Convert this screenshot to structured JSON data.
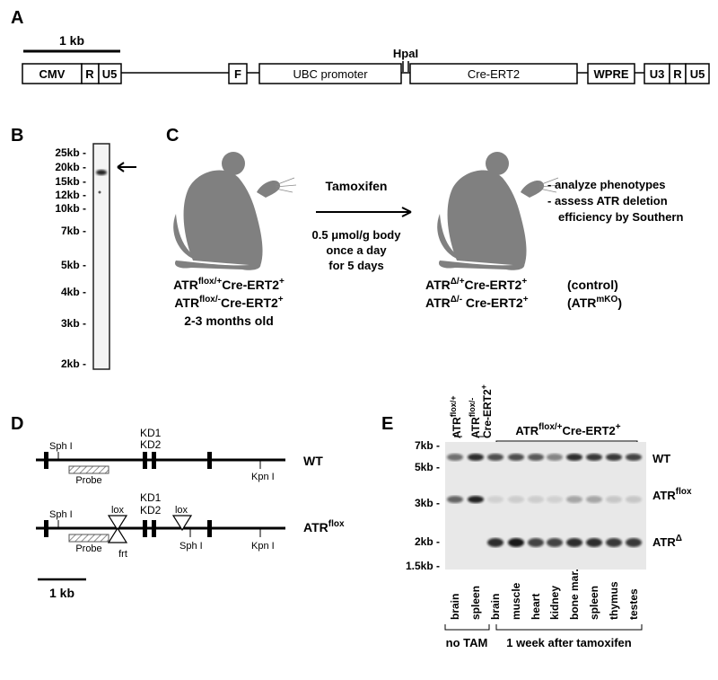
{
  "panels": {
    "a": "A",
    "b": "B",
    "c": "C",
    "d": "D",
    "e": "E"
  },
  "panel_a": {
    "scale": "1 kb",
    "hpa": "HpaI",
    "boxes": {
      "cmv": "CMV",
      "r1": "R",
      "u5a": "U5",
      "f": "F",
      "ubc": "UBC promoter",
      "cre": "Cre-ERT2",
      "wpre": "WPRE",
      "u3": "U3",
      "r2": "R",
      "u5b": "U5"
    }
  },
  "panel_b": {
    "markers": [
      "25kb",
      "20kb",
      "15kb",
      "12kb",
      "10kb",
      "7kb",
      "5kb",
      "4kb",
      "3kb",
      "2kb"
    ]
  },
  "panel_c": {
    "treatment": "Tamoxifen",
    "dose": [
      "0.5 μmol/g body",
      "once a day",
      "for 5 days"
    ],
    "left": {
      "l1_base": "ATR",
      "l1_sup": "flox/+",
      "l1_mid": "Cre-ERT2",
      "l1_sup2": "+",
      "l2_base": "ATR",
      "l2_sup": "flox/-",
      "l2_mid": "Cre-ERT2",
      "l2_sup2": "+",
      "age": "2-3 months old"
    },
    "right": {
      "r1_base": "ATR",
      "r1_sup": "Δ/+",
      "r1_mid": "Cre-ERT2",
      "r1_sup2": "+",
      "r1_note": "(control)",
      "r2_base": "ATR",
      "r2_sup": "Δ/-",
      "r2_mid": " Cre-ERT2",
      "r2_sup2": "+",
      "r2_note_base": "(ATR",
      "r2_note_sup": "mKO",
      "r2_note_end": ")"
    },
    "outcomes": [
      "- analyze phenotypes",
      "- assess ATR deletion",
      "efficiency by Southern"
    ]
  },
  "panel_d": {
    "wt_label": "WT",
    "flox_label_base": "ATR",
    "flox_label_sup": "flox",
    "sph": "Sph I",
    "kpn": "Kpn I",
    "kd1": "KD1",
    "kd2": "KD2",
    "probe": "Probe",
    "lox": "lox",
    "frt": "frt",
    "scale": "1 kb"
  },
  "panel_e": {
    "top_groups": [
      {
        "line1": "ATR",
        "sup1": "flox/+"
      },
      {
        "line1": "ATR",
        "sup1": "flox/-",
        "line2": "Cre-ERT2",
        "sup2": "+"
      }
    ],
    "bracket_label_base": "ATR",
    "bracket_label_sup": "flox/+",
    "bracket_label_mid": "Cre-ERT2",
    "bracket_label_sup2": "+",
    "markers": [
      "7kb",
      "5kb",
      "3kb",
      "2kb",
      "1.5kb"
    ],
    "bands": {
      "wt": "WT",
      "flox_base": "ATR",
      "flox_sup": "flox",
      "del_base": "ATR",
      "del_sup": "Δ"
    },
    "lanes": [
      "brain",
      "spleen",
      "brain",
      "muscle",
      "heart",
      "kidney",
      "bone mar.",
      "spleen",
      "thymus",
      "testes"
    ],
    "groups": [
      "no TAM",
      "1 week after tamoxifen"
    ]
  }
}
